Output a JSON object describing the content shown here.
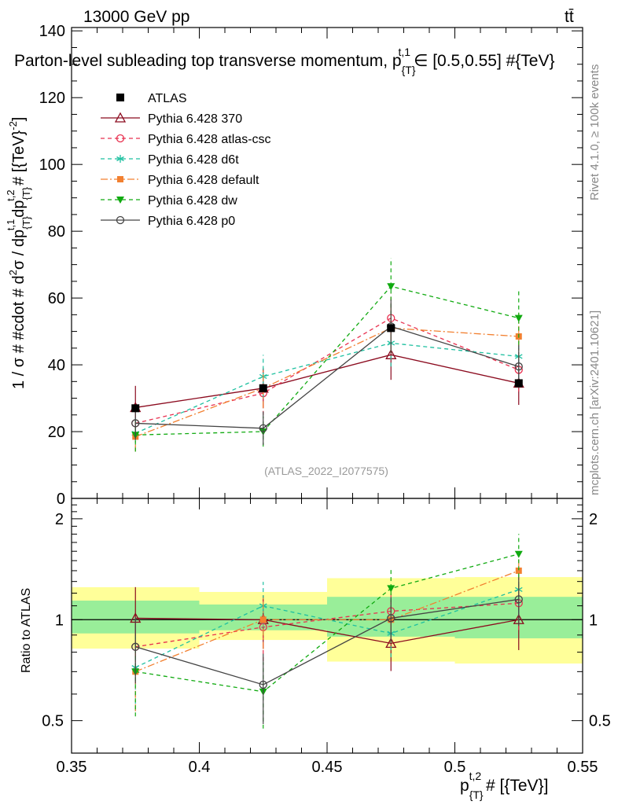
{
  "header": {
    "energy_label": "13000 GeV pp",
    "process_label": "tt̄",
    "side_label_top": "Rivet 4.1.0, ≥ 100k events",
    "side_label_bottom": "mcplots.cern.ch [arXiv:2401.10621]",
    "watermark": "(ATLAS_2022_I2077575)"
  },
  "chart_data": {
    "type": "line",
    "title": "Parton-level subleading top transverse momentum, p_{T}^{t,1} ∈ [0.5,0.55] #{TeV}",
    "title_main": "Parton-level subleading top transverse momentum, p",
    "title_sub": "{T}",
    "title_sup": "t,1",
    "title_tail": "∈ [0.5,0.55] #{TeV}",
    "ylabel": "1 / σ # #cdot # d²σ / dp_{T}^{t,1} dp_{T}^{t,2} # [{TeV}^{-2}]",
    "ylabel_parts": {
      "a": "1 / σ # #cdot # d",
      "a_sup": "2",
      "b": "σ / dp",
      "b_sub": "{T}",
      "b_sup": "t,1",
      "c": "dp",
      "c_sub": "{T}",
      "c_sup": "t,2",
      "d": " # [{TeV}",
      "d_sup": "-2",
      "e": "]"
    },
    "xlabel": "p_{T}^{t,2} # [{TeV}]",
    "xlabel_parts": {
      "a": "p",
      "sub": "{T}",
      "sup": "t,2",
      "b": " # [{TeV}]"
    },
    "ratio_ylabel": "Ratio to ATLAS",
    "xlim": [
      0.35,
      0.55
    ],
    "ylim": [
      0,
      141
    ],
    "ratio_ylim": [
      0.4,
      2.3
    ],
    "x_ticks": [
      0.35,
      0.4,
      0.45,
      0.5,
      0.55
    ],
    "x_tick_labels": [
      "0.35",
      "0.4",
      "0.45",
      "0.5",
      "0.55"
    ],
    "y_ticks": [
      0,
      20,
      40,
      60,
      80,
      100,
      120,
      140
    ],
    "y_tick_labels": [
      "0",
      "20",
      "40",
      "60",
      "80",
      "100",
      "120",
      "140"
    ],
    "ratio_ticks": [
      0.5,
      1,
      2
    ],
    "ratio_tick_labels": [
      "0.5",
      "1",
      "2"
    ],
    "bins": [
      [
        0.35,
        0.4
      ],
      [
        0.4,
        0.45
      ],
      [
        0.45,
        0.5
      ],
      [
        0.5,
        0.55
      ]
    ],
    "x": [
      0.375,
      0.425,
      0.475,
      0.525
    ],
    "data": {
      "name": "ATLAS",
      "values": [
        27.0,
        33.0,
        51.0,
        34.5
      ],
      "band_inner": [
        [
          0.91,
          1.14
        ],
        [
          0.93,
          1.11
        ],
        [
          0.89,
          1.17
        ],
        [
          0.88,
          1.17
        ]
      ],
      "band_outer": [
        [
          0.82,
          1.25
        ],
        [
          0.87,
          1.21
        ],
        [
          0.75,
          1.33
        ],
        [
          0.74,
          1.34
        ]
      ]
    },
    "series": [
      {
        "name": "Pythia 6.428 370",
        "color": "#8b0a1e",
        "dash": "",
        "marker": "triangle-open",
        "values": [
          27.2,
          33.0,
          43.0,
          34.5
        ],
        "errors": [
          6.5,
          6.0,
          7.5,
          6.5
        ],
        "ratio": [
          1.01,
          1.0,
          0.85,
          1.0
        ]
      },
      {
        "name": "Pythia 6.428 atlas-csc",
        "color": "#e8304f",
        "dash": "5,4",
        "marker": "circle-open",
        "values": [
          22.5,
          31.5,
          54.0,
          38.5
        ],
        "errors": [
          5.0,
          6.5,
          7.5,
          6.5
        ],
        "ratio": [
          0.83,
          0.95,
          1.06,
          1.12
        ]
      },
      {
        "name": "Pythia 6.428 d6t",
        "color": "#1ec0a0",
        "dash": "5,4",
        "marker": "star",
        "values": [
          19.5,
          36.5,
          46.5,
          42.5
        ],
        "errors": [
          5.0,
          6.5,
          7.0,
          6.5
        ],
        "ratio": [
          0.72,
          1.1,
          0.91,
          1.23
        ]
      },
      {
        "name": "Pythia 6.428 default",
        "color": "#f28030",
        "dash": "9,3,2,3",
        "marker": "square",
        "values": [
          18.5,
          33.0,
          51.0,
          48.5
        ],
        "errors": [
          4.5,
          6.0,
          7.5,
          7.0
        ],
        "ratio": [
          0.7,
          1.0,
          1.0,
          1.4
        ]
      },
      {
        "name": "Pythia 6.428 dw",
        "color": "#10aa10",
        "dash": "5,4",
        "marker": "triangle-down",
        "values": [
          19.0,
          20.0,
          63.5,
          54.0
        ],
        "errors": [
          5.0,
          4.5,
          8.5,
          8.0
        ],
        "ratio": [
          0.7,
          0.61,
          1.24,
          1.57
        ]
      },
      {
        "name": "Pythia 6.428 p0",
        "color": "#444444",
        "dash": "",
        "marker": "circle-open",
        "values": [
          22.5,
          21.0,
          51.5,
          39.5
        ],
        "errors": [
          5.0,
          5.0,
          8.0,
          6.5
        ],
        "ratio": [
          0.83,
          0.64,
          1.01,
          1.15
        ]
      }
    ],
    "legend": [
      "ATLAS",
      "Pythia 6.428 370",
      "Pythia 6.428 atlas-csc",
      "Pythia 6.428 d6t",
      "Pythia 6.428 default",
      "Pythia 6.428 dw",
      "Pythia 6.428 p0"
    ]
  }
}
